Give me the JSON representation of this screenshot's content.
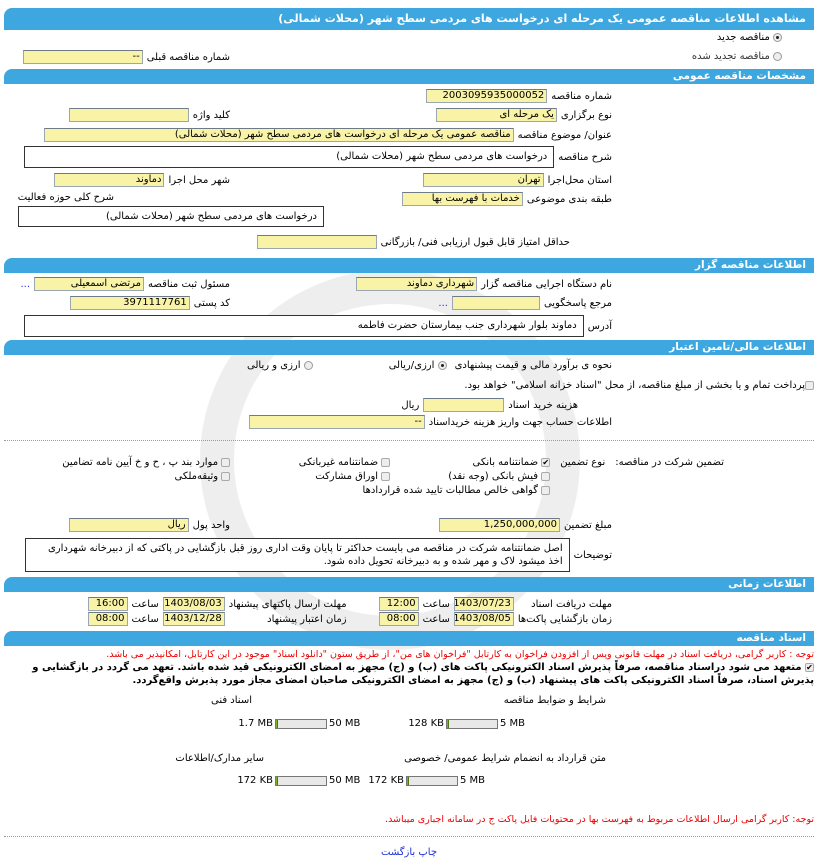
{
  "title": "مشاهده اطلاعات مناقصه عمومی یک مرحله ای درخواست های مردمی سطح شهر (محلات شمالی)",
  "tender_type": {
    "new": "مناقصه جدید",
    "renewed": "مناقصه تجدید شده",
    "selected": "new",
    "prev_number_label": "شماره مناقصه قبلی",
    "prev_number": "--"
  },
  "general": {
    "header": "مشخصات مناقصه عمومی",
    "number_label": "شماره مناقصه",
    "number": "2003095935000052",
    "holding_label": "نوع برگزاری",
    "holding": "یک مرحله ای",
    "keyword_label": "کلید واژه",
    "keyword": "",
    "subject_label": "عنوان/ موضوع مناقصه",
    "subject": "مناقصه عمومی یک مرحله ای درخواست های مردمی سطح شهر (محلات شمالی)",
    "desc_label": "شرح مناقصه",
    "desc": "درخواست های مردمی سطح شهر (محلات شمالی)",
    "province_label": "استان محل‌اجرا",
    "province": "تهران",
    "city_label": "شهر محل اجرا",
    "city": "دماوند",
    "category_label": "طبقه بندی موضوعی",
    "category": "خدمات با فهرست بها",
    "scope_label": "شرح کلی حوزه فعالیت",
    "scope": "درخواست های مردمی سطح شهر (محلات شمالی)",
    "min_score_label": "حداقل امتیاز قابل قبول ارزیابی فنی/ بازرگانی",
    "min_score": ""
  },
  "organizer": {
    "header": "اطلاعات مناقصه گزار",
    "org_label": "نام دستگاه اجرایی مناقصه گزار",
    "org": "شهرداری دماوند",
    "registrar_label": "مسئول ثبت مناقصه",
    "registrar": "مرتضی اسمعیلی",
    "reference_label": "مرجع پاسخگویی",
    "reference": "",
    "postal_label": "کد پستی",
    "postal": "3971117761",
    "address_label": "آدرس",
    "address": "دماوند بلوار شهرداری جنب بیمارستان حضرت فاطمه",
    "more": "..."
  },
  "finance": {
    "header": "اطلاعات مالی/تامین اعتبار",
    "estimate_label": "نحوه ی برآورد مالی و قیمت پیشنهادی",
    "opt1": "ارزی/ریالی",
    "opt2": "ارزی و ریالی",
    "treasury": "پرداخت تمام و یا بخشی از مبلغ مناقصه، از محل \"اسناد خزانه اسلامی\" خواهد بود.",
    "doc_cost_label": "هزینه خرید اسناد",
    "doc_cost": "",
    "doc_cost_unit": "ریال",
    "account_label": "اطلاعات حساب جهت واریز هزینه خریداسناد",
    "account": "--",
    "guarantee_label": "تضمین شرکت در مناقصه:",
    "guarantee_type_label": "نوع تضمین",
    "guarantees": [
      {
        "label": "ضمانتنامه بانکی",
        "checked": true
      },
      {
        "label": "ضمانتنامه غیربانکی",
        "checked": false
      },
      {
        "label": "موارد بند پ ، ح و خ آیین نامه تضامین",
        "checked": false
      },
      {
        "label": "فیش بانکی (وجه نقد)",
        "checked": false
      },
      {
        "label": "اوراق مشارکت",
        "checked": false
      },
      {
        "label": "وثیقه‌ملکی",
        "checked": false
      },
      {
        "label": "گواهی خالص مطالبات تایید شده قراردادها",
        "checked": false
      }
    ],
    "amount_label": "مبلغ تضمین",
    "amount": "1,250,000,000",
    "currency_label": "واحد پول",
    "currency": "ریال",
    "notes_label": "توضیحات",
    "notes": "اصل ضمانتنامه شرکت در مناقصه می بایست حداکثر تا پایان وقت اداری روز قبل بازگشایی در پاکتی که از دبیرخانه شهرداری اخذ میشود لاک و مهر شده و به دبیرخانه تحویل داده شود."
  },
  "timing": {
    "header": "اطلاعات زمانی",
    "time_label": "ساعت",
    "doc_deadline_label": "مهلت دریافت اسناد",
    "doc_deadline": "1403/07/23",
    "doc_deadline_time": "12:00",
    "submit_label": "مهلت ارسال پاکتهای پیشنهاد",
    "submit": "1403/08/03",
    "submit_time": "16:00",
    "opening_label": "زمان بازگشایی پاکت‌ها",
    "opening": "1403/08/05",
    "opening_time": "08:00",
    "validity_label": "زمان اعتبار پیشنهاد",
    "validity": "1403/12/28",
    "validity_time": "08:00"
  },
  "docs": {
    "header": "اسناد مناقصه",
    "notice": "توجه : کاربر گرامی، دریافت اسناد در مهلت قانونی وپس از افزودن فراخوان به کارتابل \"فراخوان های من\"، از طریق ستون \"دانلود اسناد\" موجود در این کارتابل، امکانپذیر می باشد.",
    "commitment": "متعهد می شود دراسناد مناقصه، صرفاً پذیرش اسناد الکترونیکی پاکت های (ب) و (ج) مجهز به امضای الکترونیکی قید شده باشد. تعهد می گردد در بازگشایی و پذیرش اسناد، صرفاً اسناد الکترونیکی پاکت های پیشنهاد (ب) و (ج) مجهز به امضای الکترونیکی صاحبان امضای مجاز مورد پذیرش واقع‌گردد.",
    "files": [
      {
        "label": "شرایط و ضوابط مناقصه",
        "size": "128 KB",
        "max": "5 MB",
        "fraction": 0.025
      },
      {
        "label": "اسناد فنی",
        "size": "1.7 MB",
        "max": "50 MB",
        "fraction": 0.034
      },
      {
        "label": "متن قرارداد به انضمام شرایط عمومی/ خصوصی",
        "size": "172 KB",
        "max": "5 MB",
        "fraction": 0.034
      },
      {
        "label": "سایر مدارک/اطلاعات",
        "size": "172 KB",
        "max": "50 MB",
        "fraction": 0.004
      }
    ],
    "footer_notice": "توجه: کاربر گرامی ارسال اطلاعات مربوط به فهرست بها در محتویات فایل پاکت ج در سامانه اجباری میباشد."
  },
  "actions": {
    "print": "چاپ",
    "back": "بازگشت"
  },
  "colors": {
    "header": "#3ea7e0",
    "input": "#f8f3a6",
    "notice": "#e00000",
    "link": "#1d2ed8"
  }
}
